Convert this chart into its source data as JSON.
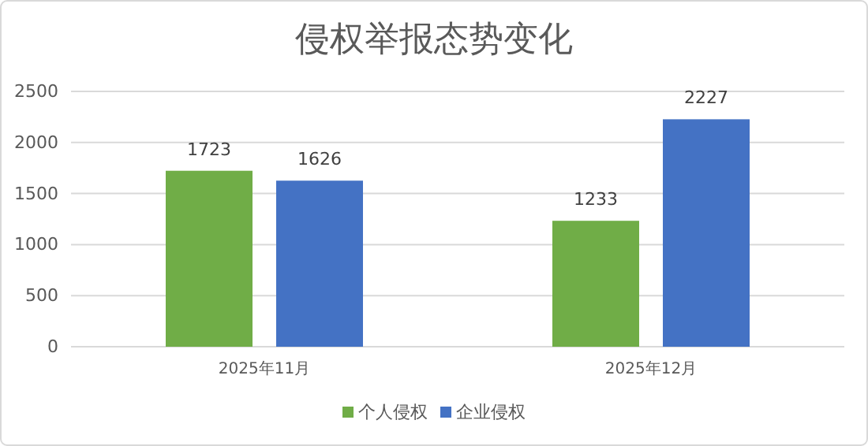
{
  "chart_data": {
    "type": "bar",
    "title": "侵权举报态势变化",
    "categories": [
      "2025年11月",
      "2025年12月"
    ],
    "series": [
      {
        "name": "个人侵权",
        "color": "#70ad47",
        "values": [
          1723,
          1233
        ]
      },
      {
        "name": "企业侵权",
        "color": "#4472c4",
        "values": [
          1626,
          2227
        ]
      }
    ],
    "ylim": [
      0,
      2500
    ],
    "yticks": [
      0,
      500,
      1000,
      1500,
      2000,
      2500
    ],
    "grid": "y",
    "legend": "bottom",
    "data_labels": true
  }
}
